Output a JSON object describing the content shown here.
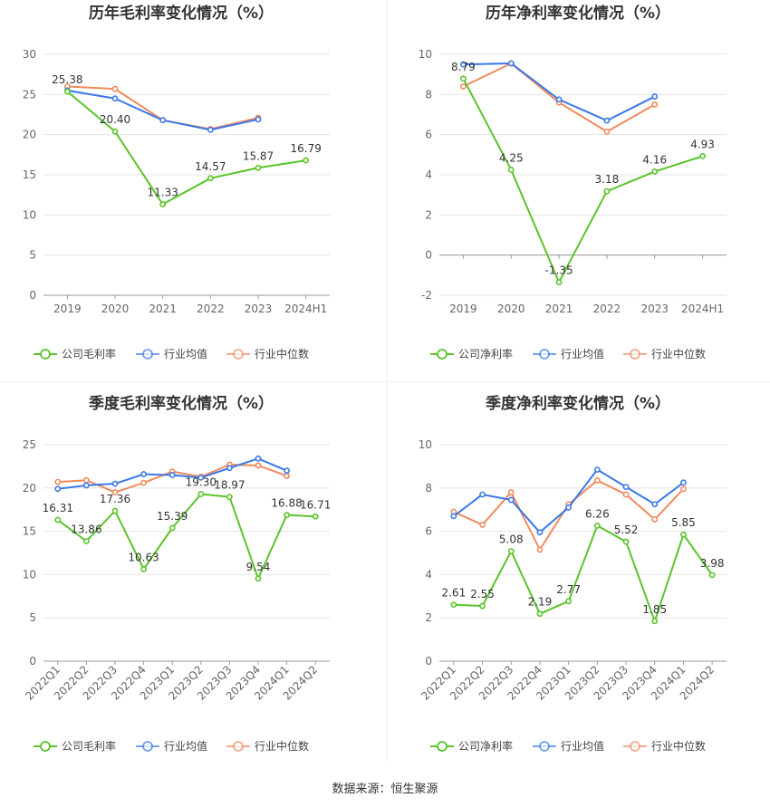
{
  "source": "数据来源：恒生聚源",
  "colors": {
    "company": "#5ac42a",
    "industry_avg": "#3b78e7",
    "industry_median": "#f08a5d"
  },
  "chart_data": [
    {
      "type": "line",
      "title": "历年毛利率变化情况（%）",
      "categories": [
        "2019",
        "2020",
        "2021",
        "2022",
        "2023",
        "2024H1"
      ],
      "ylim": [
        0,
        30
      ],
      "yticks": [
        0,
        5,
        10,
        15,
        20,
        25,
        30
      ],
      "grid": true,
      "legend_position": "bottom",
      "series": [
        {
          "name": "公司毛利率",
          "values": [
            25.38,
            20.4,
            11.33,
            14.57,
            15.87,
            16.79
          ]
        },
        {
          "name": "行业均值",
          "values": [
            25.5,
            24.5,
            21.8,
            20.6,
            21.9,
            null
          ]
        },
        {
          "name": "行业中位数",
          "values": [
            26.0,
            25.7,
            21.8,
            20.7,
            22.1,
            null
          ]
        }
      ],
      "data_labels": [
        "25.38",
        "20.40",
        "11.33",
        "14.57",
        "15.87",
        "16.79"
      ]
    },
    {
      "type": "line",
      "title": "历年净利率变化情况（%）",
      "categories": [
        "2019",
        "2020",
        "2021",
        "2022",
        "2023",
        "2024H1"
      ],
      "ylim": [
        -2,
        10
      ],
      "yticks": [
        -2,
        0,
        2,
        4,
        6,
        8,
        10
      ],
      "grid": true,
      "legend_position": "bottom",
      "series": [
        {
          "name": "公司净利率",
          "values": [
            8.79,
            4.25,
            -1.35,
            3.18,
            4.16,
            4.93
          ]
        },
        {
          "name": "行业均值",
          "values": [
            9.5,
            9.55,
            7.75,
            6.7,
            7.9,
            null
          ]
        },
        {
          "name": "行业中位数",
          "values": [
            8.4,
            9.55,
            7.6,
            6.15,
            7.5,
            null
          ]
        }
      ],
      "data_labels": [
        "8.79",
        "4.25",
        "-1.35",
        "3.18",
        "4.16",
        "4.93"
      ]
    },
    {
      "type": "line",
      "title": "季度毛利率变化情况（%）",
      "categories": [
        "2022Q1",
        "2022Q2",
        "2022Q3",
        "2022Q4",
        "2023Q1",
        "2023Q2",
        "2023Q3",
        "2023Q4",
        "2024Q1",
        "2024Q2"
      ],
      "ylim": [
        0,
        25
      ],
      "yticks": [
        0,
        5,
        10,
        15,
        20,
        25
      ],
      "grid": true,
      "legend_position": "bottom",
      "series": [
        {
          "name": "公司毛利率",
          "values": [
            16.31,
            13.86,
            17.36,
            10.63,
            15.39,
            19.3,
            18.97,
            9.54,
            16.88,
            16.71
          ]
        },
        {
          "name": "行业均值",
          "values": [
            19.9,
            20.3,
            20.5,
            21.6,
            21.5,
            21.2,
            22.3,
            23.4,
            22.0,
            null
          ]
        },
        {
          "name": "行业中位数",
          "values": [
            20.7,
            20.9,
            19.5,
            20.6,
            21.9,
            21.3,
            22.7,
            22.6,
            21.4,
            null
          ]
        }
      ],
      "data_labels": [
        "16.31",
        "13.86",
        "17.36",
        "10.63",
        "15.39",
        "19.30",
        "18.97",
        "9.54",
        "16.88",
        "16.71"
      ]
    },
    {
      "type": "line",
      "title": "季度净利率变化情况（%）",
      "categories": [
        "2022Q1",
        "2022Q2",
        "2022Q3",
        "2022Q4",
        "2023Q1",
        "2023Q2",
        "2023Q3",
        "2023Q4",
        "2024Q1",
        "2024Q2"
      ],
      "ylim": [
        0,
        10
      ],
      "yticks": [
        0,
        2,
        4,
        6,
        8,
        10
      ],
      "grid": true,
      "legend_position": "bottom",
      "series": [
        {
          "name": "公司净利率",
          "values": [
            2.61,
            2.55,
            5.08,
            2.19,
            2.77,
            6.26,
            5.52,
            1.85,
            5.85,
            3.98
          ]
        },
        {
          "name": "行业均值",
          "values": [
            6.7,
            7.7,
            7.45,
            5.95,
            7.1,
            8.85,
            8.05,
            7.25,
            8.25,
            null
          ]
        },
        {
          "name": "行业中位数",
          "values": [
            6.9,
            6.3,
            7.8,
            5.15,
            7.25,
            8.35,
            7.7,
            6.55,
            7.95,
            null
          ]
        }
      ],
      "data_labels": [
        "2.61",
        "2.55",
        "5.08",
        "2.19",
        "2.77",
        "6.26",
        "5.52",
        "1.85",
        "5.85",
        "3.98"
      ]
    }
  ]
}
